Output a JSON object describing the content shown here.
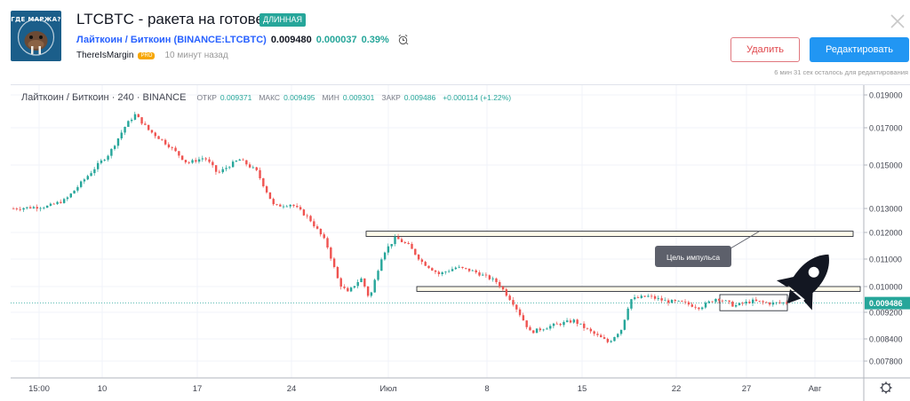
{
  "header": {
    "avatar_text": "ГДЕ МАРЖА?",
    "title": "LTCBTC - ракета на готове",
    "badge": "ДЛИННАЯ",
    "symbol_name": "Лайткоин / Биткоин",
    "symbol_code": "(BINANCE:LTCBTC)",
    "price": "0.009480",
    "change_abs": "0.000037",
    "change_pct": "0.39%",
    "author": "ThereIsMargin",
    "author_badge": "PRO",
    "time_ago": "10 минут назад",
    "delete_label": "Удалить",
    "edit_label": "Редактировать",
    "edit_note": "6 мин 31 сек осталось для редактирования"
  },
  "legend": {
    "title": "Лайткоин / Биткоин · 240 · BINANCE",
    "open_label": "ОТКР",
    "open": "0.009371",
    "high_label": "МАКС",
    "high": "0.009495",
    "low_label": "МИН",
    "low": "0.009301",
    "close_label": "ЗАКР",
    "close": "0.009486",
    "change": "+0.000114 (+1.22%)"
  },
  "annotation": {
    "label": "Цель импульса"
  },
  "colors": {
    "up": "#26a69a",
    "down": "#ef5350",
    "accent": "#2196f3",
    "price_tag": "#26a69a"
  },
  "icons": {
    "rocket": "rocket-icon",
    "settings": "gear-icon",
    "alarm": "alarm-clock-icon",
    "close": "close-icon"
  },
  "chart_data": {
    "type": "candlestick",
    "y_axis_labels": [
      "0.019000",
      "0.017000",
      "0.015000",
      "0.013000",
      "0.012000",
      "0.011000",
      "0.010000",
      "0.009200",
      "0.008400",
      "0.007800"
    ],
    "x_axis_labels": [
      "15:00",
      "10",
      "17",
      "24",
      "Июл",
      "8",
      "15",
      "22",
      "27",
      "Авг"
    ],
    "last_price_label": "0.009486",
    "path": [
      [
        0,
        0.013
      ],
      [
        0.04,
        0.0131
      ],
      [
        0.06,
        0.0134
      ],
      [
        0.09,
        0.0147
      ],
      [
        0.11,
        0.0156
      ],
      [
        0.13,
        0.0172
      ],
      [
        0.14,
        0.0178
      ],
      [
        0.155,
        0.0169
      ],
      [
        0.18,
        0.016
      ],
      [
        0.2,
        0.0151
      ],
      [
        0.22,
        0.0154
      ],
      [
        0.235,
        0.0146
      ],
      [
        0.26,
        0.0153
      ],
      [
        0.28,
        0.0147
      ],
      [
        0.3,
        0.0131
      ],
      [
        0.32,
        0.0132
      ],
      [
        0.34,
        0.0126
      ],
      [
        0.36,
        0.0116
      ],
      [
        0.375,
        0.0101
      ],
      [
        0.385,
        0.0098
      ],
      [
        0.4,
        0.0103
      ],
      [
        0.41,
        0.0096
      ],
      [
        0.425,
        0.0112
      ],
      [
        0.44,
        0.0118
      ],
      [
        0.455,
        0.0115
      ],
      [
        0.47,
        0.0109
      ],
      [
        0.49,
        0.01045
      ],
      [
        0.51,
        0.0107
      ],
      [
        0.53,
        0.01055
      ],
      [
        0.555,
        0.0102
      ],
      [
        0.575,
        0.0095
      ],
      [
        0.595,
        0.0086
      ],
      [
        0.62,
        0.0088
      ],
      [
        0.645,
        0.00895
      ],
      [
        0.665,
        0.0086
      ],
      [
        0.685,
        0.0083
      ],
      [
        0.7,
        0.0087
      ],
      [
        0.71,
        0.0096
      ],
      [
        0.73,
        0.0097
      ],
      [
        0.75,
        0.00955
      ],
      [
        0.77,
        0.0095
      ],
      [
        0.79,
        0.00935
      ],
      [
        0.81,
        0.00965
      ],
      [
        0.83,
        0.0094
      ],
      [
        0.85,
        0.00955
      ],
      [
        0.87,
        0.00948
      ],
      [
        0.89,
        0.0095
      ]
    ],
    "levels": [
      {
        "name": "upper-box",
        "from": 0.01205,
        "to": 0.01185
      },
      {
        "name": "middle-box",
        "from": 0.01,
        "to": 0.00985
      },
      {
        "name": "consolidation-box",
        "from": 0.00975,
        "to": 0.00925
      }
    ]
  }
}
